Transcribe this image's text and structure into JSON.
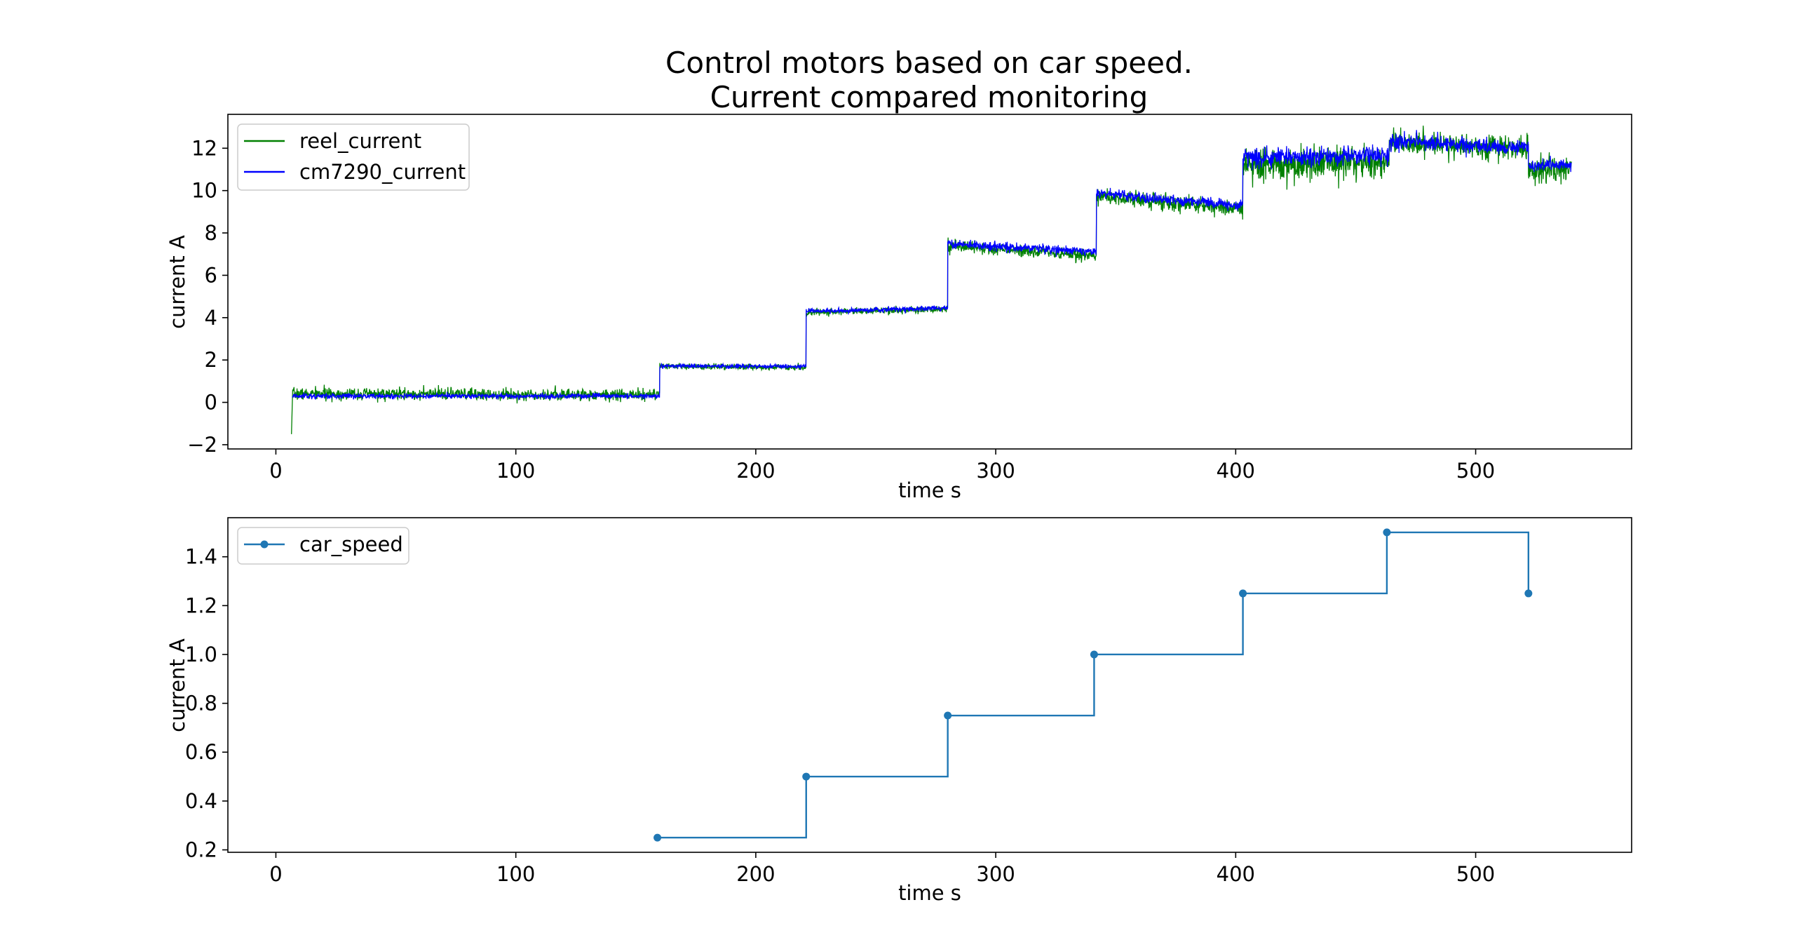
{
  "figure": {
    "title_line1": "Control motors based on car speed.",
    "title_line2": "Current compared monitoring"
  },
  "chart_data": [
    {
      "type": "line",
      "xlabel": "time s",
      "ylabel": "current A",
      "xlim": [
        -20,
        565
      ],
      "ylim": [
        -2.2,
        13.6
      ],
      "xticks": [
        0,
        100,
        200,
        300,
        400,
        500
      ],
      "yticks": [
        -2,
        0,
        2,
        4,
        6,
        8,
        10,
        12
      ],
      "legend_position": "upper left",
      "grid": false,
      "noise_seed": 7,
      "series": [
        {
          "name": "reel_current",
          "color": "#008000",
          "start": {
            "x": 6.5,
            "y": -1.5
          },
          "steps": [
            {
              "x0": 7,
              "x1": 160,
              "y0": 0.4,
              "y1": 0.35,
              "noise": 0.14
            },
            {
              "x0": 160,
              "x1": 221,
              "y0": 1.7,
              "y1": 1.65,
              "noise": 0.07
            },
            {
              "x0": 221,
              "x1": 280,
              "y0": 4.25,
              "y1": 4.4,
              "noise": 0.08
            },
            {
              "x0": 280,
              "x1": 342,
              "y0": 7.4,
              "y1": 6.9,
              "noise": 0.14
            },
            {
              "x0": 342,
              "x1": 403,
              "y0": 9.75,
              "y1": 9.1,
              "noise": 0.18
            },
            {
              "x0": 403,
              "x1": 464,
              "y0": 11.2,
              "y1": 11.35,
              "noise": 0.38
            },
            {
              "x0": 464,
              "x1": 522,
              "y0": 12.3,
              "y1": 11.95,
              "noise": 0.28
            },
            {
              "x0": 522,
              "x1": 540,
              "y0": 11.05,
              "y1": 11.05,
              "noise": 0.32
            }
          ]
        },
        {
          "name": "cm7290_current",
          "color": "#0000ff",
          "start": {
            "x": 7,
            "y": 0.3
          },
          "steps": [
            {
              "x0": 7,
              "x1": 160,
              "y0": 0.3,
              "y1": 0.3,
              "noise": 0.06
            },
            {
              "x0": 160,
              "x1": 221,
              "y0": 1.72,
              "y1": 1.68,
              "noise": 0.05
            },
            {
              "x0": 221,
              "x1": 280,
              "y0": 4.3,
              "y1": 4.45,
              "noise": 0.06
            },
            {
              "x0": 280,
              "x1": 342,
              "y0": 7.5,
              "y1": 7.1,
              "noise": 0.1
            },
            {
              "x0": 342,
              "x1": 403,
              "y0": 9.85,
              "y1": 9.3,
              "noise": 0.12
            },
            {
              "x0": 403,
              "x1": 464,
              "y0": 11.55,
              "y1": 11.7,
              "noise": 0.22
            },
            {
              "x0": 464,
              "x1": 522,
              "y0": 12.35,
              "y1": 12.0,
              "noise": 0.18
            },
            {
              "x0": 522,
              "x1": 540,
              "y0": 11.2,
              "y1": 11.2,
              "noise": 0.15
            }
          ]
        }
      ]
    },
    {
      "type": "line",
      "xlabel": "time s",
      "ylabel": "current A",
      "xlim": [
        -20,
        565
      ],
      "ylim": [
        0.19,
        1.56
      ],
      "xticks": [
        0,
        100,
        200,
        300,
        400,
        500
      ],
      "yticks": [
        0.2,
        0.4,
        0.6,
        0.8,
        1.0,
        1.2,
        1.4
      ],
      "ytick_decimals": 1,
      "legend_position": "upper left",
      "grid": false,
      "series": [
        {
          "name": "car_speed",
          "color": "#1f77b4",
          "drawstyle": "steps-post",
          "marker": "circle",
          "x": [
            159,
            221,
            280,
            341,
            403,
            463,
            522
          ],
          "y": [
            0.25,
            0.5,
            0.75,
            1.0,
            1.25,
            1.5,
            1.25
          ]
        }
      ]
    }
  ]
}
